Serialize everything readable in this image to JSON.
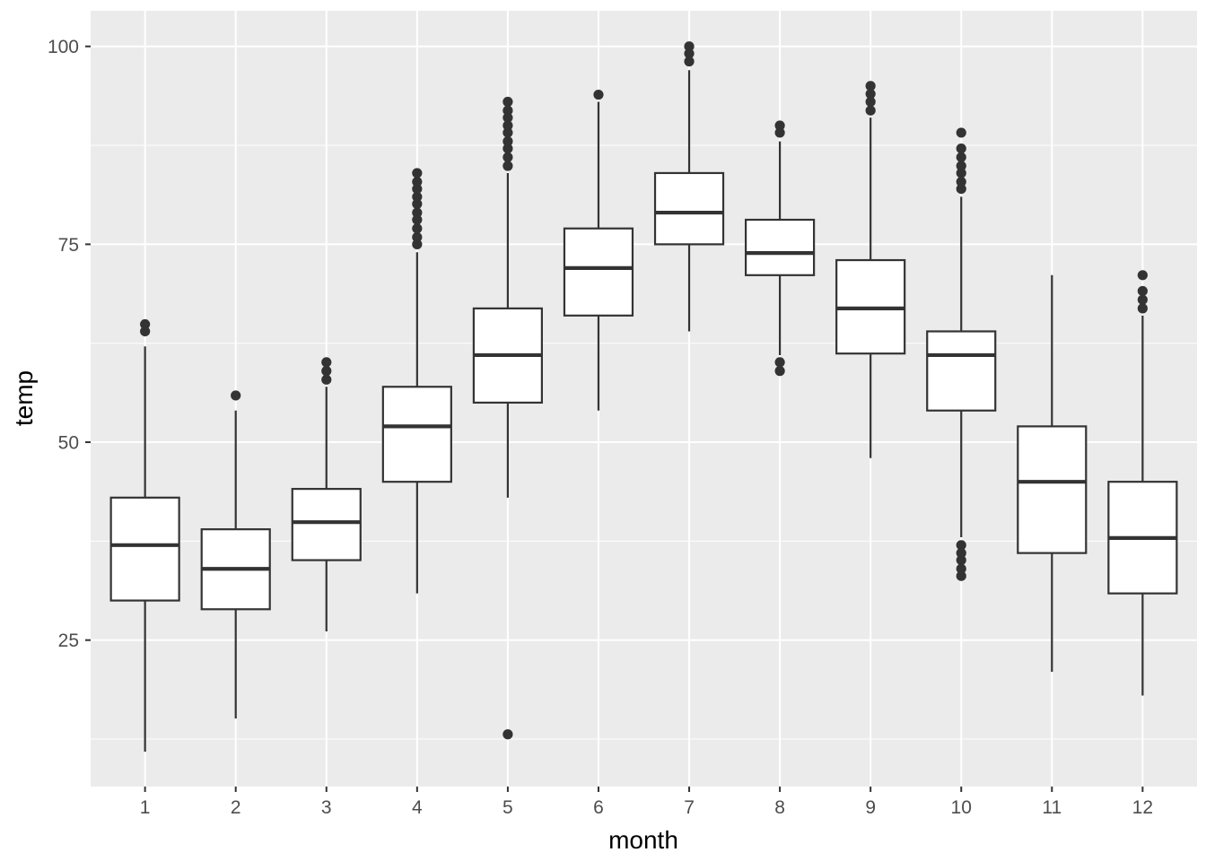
{
  "chart_data": {
    "type": "boxplot",
    "title": "",
    "xlabel": "month",
    "ylabel": "temp",
    "categories": [
      "1",
      "2",
      "3",
      "4",
      "5",
      "6",
      "7",
      "8",
      "9",
      "10",
      "11",
      "12"
    ],
    "y_ticks": [
      25,
      50,
      75,
      100
    ],
    "y_minor_gridlines": [
      12.5,
      37.5,
      62.5,
      87.5
    ],
    "ylim": [
      6.5,
      104.5
    ],
    "grid": true,
    "legend": false,
    "boxes": [
      {
        "month": "1",
        "lower_whisker": 10.9,
        "q1": 30.0,
        "median": 37.0,
        "q3": 43.0,
        "upper_whisker": 62.1,
        "outliers": [
          64.0,
          64.9
        ]
      },
      {
        "month": "2",
        "lower_whisker": 15.1,
        "q1": 28.9,
        "median": 34.0,
        "q3": 39.0,
        "upper_whisker": 54.0,
        "outliers": [
          55.9
        ]
      },
      {
        "month": "3",
        "lower_whisker": 26.1,
        "q1": 35.1,
        "median": 39.9,
        "q3": 44.1,
        "upper_whisker": 57.0,
        "outliers": [
          57.9,
          59.0,
          60.1
        ]
      },
      {
        "month": "4",
        "lower_whisker": 30.9,
        "q1": 45.0,
        "median": 52.0,
        "q3": 57.0,
        "upper_whisker": 74.0,
        "outliers": [
          75.0,
          75.9,
          77.0,
          78.1,
          79.0,
          80.1,
          81.0,
          82.0,
          82.9,
          84.0
        ]
      },
      {
        "month": "5",
        "lower_whisker": 43.0,
        "q1": 55.0,
        "median": 61.0,
        "q3": 66.9,
        "upper_whisker": 84.0,
        "outliers": [
          13.1,
          84.9,
          86.0,
          87.1,
          88.0,
          89.1,
          90.0,
          91.0,
          91.9,
          93.0
        ]
      },
      {
        "month": "6",
        "lower_whisker": 54.0,
        "q1": 66.0,
        "median": 72.0,
        "q3": 77.0,
        "upper_whisker": 93.0,
        "outliers": [
          93.9
        ]
      },
      {
        "month": "7",
        "lower_whisker": 64.0,
        "q1": 75.0,
        "median": 79.0,
        "q3": 84.0,
        "upper_whisker": 97.0,
        "outliers": [
          98.1,
          99.1,
          100.0
        ]
      },
      {
        "month": "8",
        "lower_whisker": 61.0,
        "q1": 71.1,
        "median": 73.9,
        "q3": 78.1,
        "upper_whisker": 88.0,
        "outliers": [
          59.0,
          60.1,
          89.1,
          90.0
        ]
      },
      {
        "month": "9",
        "lower_whisker": 48.0,
        "q1": 61.2,
        "median": 66.9,
        "q3": 73.0,
        "upper_whisker": 91.0,
        "outliers": [
          91.9,
          93.0,
          94.0,
          95.0
        ]
      },
      {
        "month": "10",
        "lower_whisker": 38.0,
        "q1": 54.0,
        "median": 61.0,
        "q3": 64.0,
        "upper_whisker": 81.0,
        "outliers": [
          33.1,
          34.0,
          35.1,
          36.0,
          37.0,
          82.0,
          82.9,
          84.0,
          84.9,
          86.0,
          87.1,
          89.1
        ]
      },
      {
        "month": "11",
        "lower_whisker": 21.0,
        "q1": 36.0,
        "median": 45.0,
        "q3": 52.0,
        "upper_whisker": 71.1,
        "outliers": []
      },
      {
        "month": "12",
        "lower_whisker": 18.0,
        "q1": 30.9,
        "median": 37.9,
        "q3": 45.0,
        "upper_whisker": 66.0,
        "outliers": [
          66.9,
          68.0,
          69.1,
          71.1
        ]
      }
    ],
    "colors": {
      "panel_background": "#ebebeb",
      "gridline": "#ffffff",
      "box_stroke": "#333333",
      "box_fill": "#ffffff",
      "median": "#333333",
      "outlier": "#333333",
      "tick_mark": "#333333",
      "tick_text": "#4d4d4d",
      "title_text": "#000000"
    }
  }
}
